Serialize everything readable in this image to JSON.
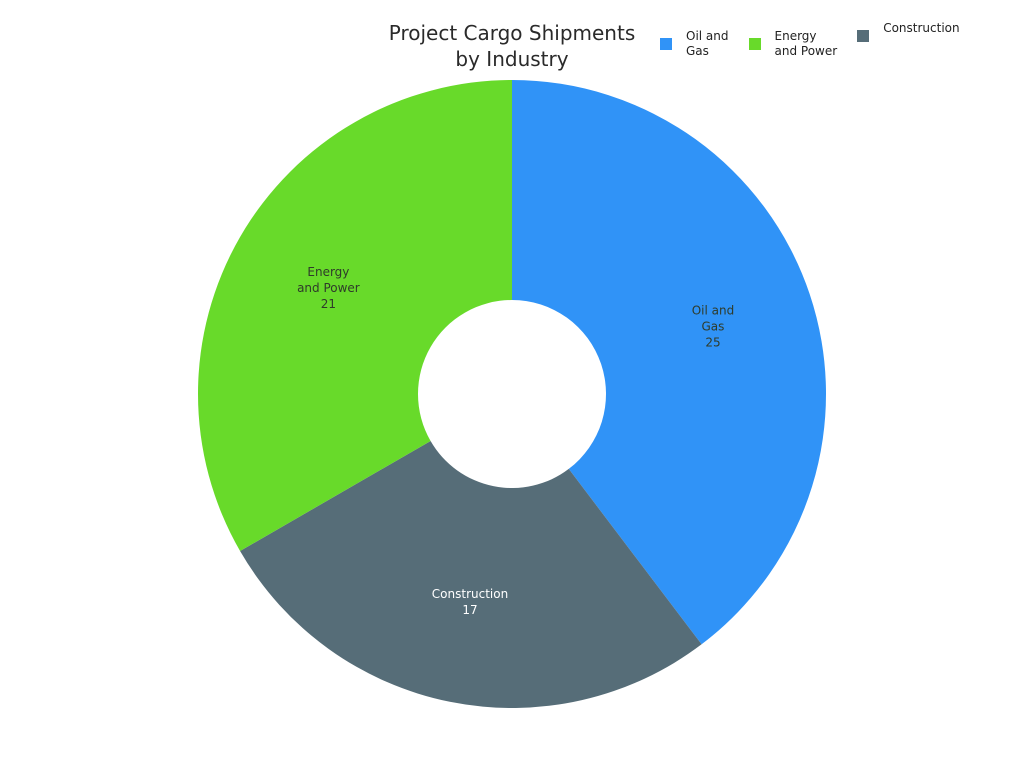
{
  "chart_data": {
    "type": "pie",
    "subtype": "donut",
    "title": "Project Cargo Shipments by Industry",
    "categories": [
      "Oil and Gas",
      "Energy and Power",
      "Construction"
    ],
    "values": [
      25,
      21,
      17
    ],
    "colors": [
      "#3093f7",
      "#68da2a",
      "#566d78"
    ],
    "legend_position": "top-right",
    "hole_ratio": 0.3
  },
  "title": {
    "line1": "Project Cargo Shipments",
    "line2": "by Industry"
  },
  "legend": [
    {
      "label": "Oil and\nGas",
      "color": "#3093f7"
    },
    {
      "label": "Energy\nand Power",
      "color": "#68da2a"
    },
    {
      "label": "Construction",
      "color": "#566d78"
    }
  ],
  "slice_labels": [
    {
      "name": "Oil and\nGas",
      "value": "25"
    },
    {
      "name": "Energy\nand Power",
      "value": "21"
    },
    {
      "name": "Construction",
      "value": "17"
    }
  ]
}
